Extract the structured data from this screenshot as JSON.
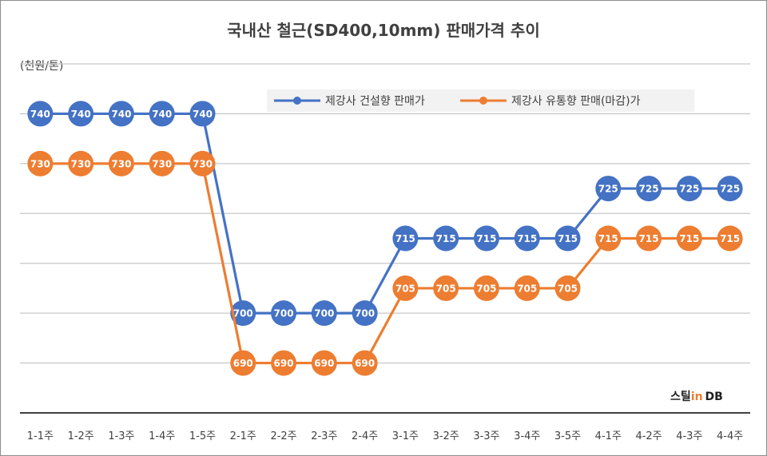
{
  "chart_data": {
    "type": "line",
    "title": "국내산 철근(SD400,10mm) 판매가격 추이",
    "ylabel": "(천원/톤)",
    "xlabel": "",
    "categories": [
      "1-1주",
      "1-2주",
      "1-3주",
      "1-4주",
      "1-5주",
      "2-1주",
      "2-2주",
      "2-3주",
      "2-4주",
      "3-1주",
      "3-2주",
      "3-3주",
      "3-4주",
      "3-5주",
      "4-1주",
      "4-2주",
      "4-3주",
      "4-4주"
    ],
    "series": [
      {
        "name": "제강사 건설향 판매가",
        "color": "#4472c4",
        "values": [
          740,
          740,
          740,
          740,
          740,
          700,
          700,
          700,
          700,
          715,
          715,
          715,
          715,
          715,
          725,
          725,
          725,
          725
        ]
      },
      {
        "name": "제강사 유통향 판매(마감)가",
        "color": "#ed7d31",
        "values": [
          730,
          730,
          730,
          730,
          730,
          690,
          690,
          690,
          690,
          705,
          705,
          705,
          705,
          705,
          715,
          715,
          715,
          715
        ]
      }
    ],
    "ylim": [
      680,
      750
    ],
    "grid": true,
    "legend_position": "top-right",
    "data_labels": true
  },
  "logo": {
    "text_a": "스틸",
    "text_b": "in",
    "text_c": "DB"
  }
}
